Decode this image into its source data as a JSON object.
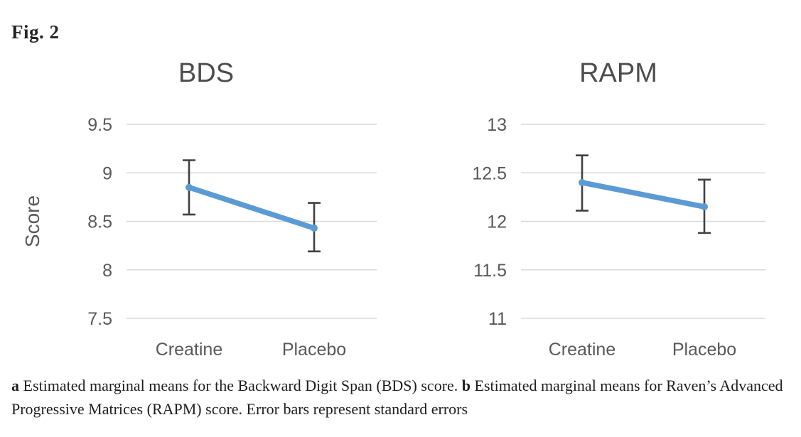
{
  "figure_label": "Fig. 2",
  "caption": {
    "a_label": "a",
    "a_text": " Estimated marginal means for the Backward Digit Span (BDS) score. ",
    "b_label": "b",
    "b_text": " Estimated marginal means for Raven’s Advanced Progressive Matrices (RAPM) score. Error bars represent standard errors"
  },
  "style": {
    "line_color": "#5B9BD5",
    "marker_color": "#5B9BD5",
    "error_bar_color": "#404040",
    "gridline_color": "#D9D9D9",
    "axis_text_color": "#595959",
    "title_color": "#4d4d4d"
  },
  "chart_data": [
    {
      "type": "line",
      "title": "BDS",
      "ylabel": "Score",
      "xlabel": "",
      "categories": [
        "Creatine",
        "Placebo"
      ],
      "series": [
        {
          "name": "Estimated marginal mean",
          "values": [
            8.85,
            8.43
          ],
          "error_low": [
            8.57,
            8.19
          ],
          "error_high": [
            9.13,
            8.69
          ]
        }
      ],
      "yticks": [
        "9.5",
        "9",
        "8.5",
        "8",
        "7.5"
      ],
      "ylim": [
        7.5,
        9.5
      ],
      "grid": true,
      "legend": false
    },
    {
      "type": "line",
      "title": "RAPM",
      "ylabel": "",
      "xlabel": "",
      "categories": [
        "Creatine",
        "Placebo"
      ],
      "series": [
        {
          "name": "Estimated marginal mean",
          "values": [
            12.4,
            12.15
          ],
          "error_low": [
            12.11,
            11.88
          ],
          "error_high": [
            12.68,
            12.43
          ]
        }
      ],
      "yticks": [
        "13",
        "12.5",
        "12",
        "11.5",
        "11"
      ],
      "ylim": [
        11,
        13
      ],
      "grid": true,
      "legend": false
    }
  ]
}
